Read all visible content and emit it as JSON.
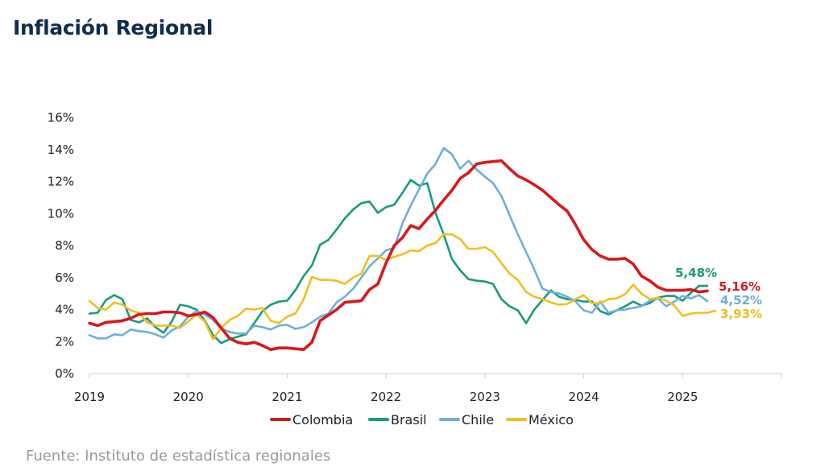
{
  "title": "Inflación Regional",
  "source": "Fuente: Instituto de estadística regionales",
  "chart_data": {
    "type": "line",
    "title": "Inflación Regional",
    "xlabel": "",
    "ylabel": "",
    "xlim": [
      2019.0,
      2026.0
    ],
    "ylim": [
      0,
      16
    ],
    "y_ticks": [
      "0%",
      "2%",
      "4%",
      "6%",
      "8%",
      "10%",
      "12%",
      "14%",
      "16%"
    ],
    "x_ticks": [
      "2019",
      "2020",
      "2021",
      "2022",
      "2023",
      "2024",
      "2025"
    ],
    "grid": false,
    "legend_position": "bottom",
    "series": [
      {
        "name": "Colombia",
        "color": "#d7191c",
        "end_label": "5,16%",
        "x": [
          2019.0,
          2019.083,
          2019.167,
          2019.25,
          2019.333,
          2019.417,
          2019.5,
          2019.583,
          2019.667,
          2019.75,
          2019.833,
          2019.917,
          2020.0,
          2020.083,
          2020.167,
          2020.25,
          2020.333,
          2020.417,
          2020.5,
          2020.583,
          2020.667,
          2020.75,
          2020.833,
          2020.917,
          2021.0,
          2021.083,
          2021.167,
          2021.25,
          2021.333,
          2021.417,
          2021.5,
          2021.583,
          2021.667,
          2021.75,
          2021.833,
          2021.917,
          2022.0,
          2022.083,
          2022.167,
          2022.25,
          2022.333,
          2022.417,
          2022.5,
          2022.583,
          2022.667,
          2022.75,
          2022.833,
          2022.917,
          2023.0,
          2023.083,
          2023.167,
          2023.25,
          2023.333,
          2023.417,
          2023.5,
          2023.583,
          2023.667,
          2023.75,
          2023.833,
          2023.917,
          2024.0,
          2024.083,
          2024.167,
          2024.25,
          2024.333,
          2024.417,
          2024.5,
          2024.583,
          2024.667,
          2024.75,
          2024.833,
          2024.917,
          2025.0,
          2025.083,
          2025.167,
          2025.25
        ],
        "values": [
          3.15,
          3.0,
          3.2,
          3.25,
          3.3,
          3.45,
          3.7,
          3.75,
          3.75,
          3.85,
          3.85,
          3.8,
          3.6,
          3.7,
          3.85,
          3.5,
          2.85,
          2.2,
          1.95,
          1.85,
          1.95,
          1.75,
          1.5,
          1.6,
          1.6,
          1.55,
          1.5,
          1.95,
          3.3,
          3.65,
          4.0,
          4.45,
          4.5,
          4.55,
          5.25,
          5.6,
          6.9,
          8.0,
          8.5,
          9.25,
          9.05,
          9.65,
          10.2,
          10.85,
          11.45,
          12.2,
          12.55,
          13.1,
          13.2,
          13.25,
          13.3,
          12.8,
          12.35,
          12.1,
          11.8,
          11.45,
          11.0,
          10.55,
          10.15,
          9.3,
          8.35,
          7.75,
          7.35,
          7.15,
          7.15,
          7.2,
          6.85,
          6.1,
          5.8,
          5.4,
          5.2,
          5.2,
          5.2,
          5.25,
          5.1,
          5.16
        ]
      },
      {
        "name": "Brasil",
        "color": "#179c7d",
        "end_label": "5,48%",
        "x": [
          2019.0,
          2019.083,
          2019.167,
          2019.25,
          2019.333,
          2019.417,
          2019.5,
          2019.583,
          2019.667,
          2019.75,
          2019.833,
          2019.917,
          2020.0,
          2020.083,
          2020.167,
          2020.25,
          2020.333,
          2020.417,
          2020.5,
          2020.583,
          2020.667,
          2020.75,
          2020.833,
          2020.917,
          2021.0,
          2021.083,
          2021.167,
          2021.25,
          2021.333,
          2021.417,
          2021.5,
          2021.583,
          2021.667,
          2021.75,
          2021.833,
          2021.917,
          2022.0,
          2022.083,
          2022.167,
          2022.25,
          2022.333,
          2022.417,
          2022.5,
          2022.583,
          2022.667,
          2022.75,
          2022.833,
          2022.917,
          2023.0,
          2023.083,
          2023.167,
          2023.25,
          2023.333,
          2023.417,
          2023.5,
          2023.583,
          2023.667,
          2023.75,
          2023.833,
          2023.917,
          2024.0,
          2024.083,
          2024.167,
          2024.25,
          2024.333,
          2024.417,
          2024.5,
          2024.583,
          2024.667,
          2024.75,
          2024.833,
          2024.917,
          2025.0,
          2025.083,
          2025.167,
          2025.25
        ],
        "values": [
          3.75,
          3.8,
          4.6,
          4.9,
          4.65,
          3.35,
          3.2,
          3.45,
          2.9,
          2.55,
          3.25,
          4.3,
          4.2,
          4.0,
          3.3,
          2.4,
          1.9,
          2.15,
          2.3,
          2.45,
          3.15,
          3.9,
          4.3,
          4.5,
          4.55,
          5.2,
          6.1,
          6.75,
          8.05,
          8.35,
          9.0,
          9.7,
          10.25,
          10.65,
          10.75,
          10.05,
          10.4,
          10.55,
          11.3,
          12.1,
          11.75,
          11.9,
          10.05,
          8.7,
          7.15,
          6.45,
          5.9,
          5.8,
          5.75,
          5.6,
          4.65,
          4.2,
          3.95,
          3.15,
          4.0,
          4.6,
          5.2,
          4.8,
          4.65,
          4.6,
          4.5,
          4.5,
          3.9,
          3.7,
          3.95,
          4.2,
          4.5,
          4.25,
          4.4,
          4.75,
          4.85,
          4.85,
          4.55,
          5.05,
          5.48,
          5.48
        ]
      },
      {
        "name": "Chile",
        "color": "#6cb0de",
        "end_label": "4,52%",
        "x": [
          2019.0,
          2019.083,
          2019.167,
          2019.25,
          2019.333,
          2019.417,
          2019.5,
          2019.583,
          2019.667,
          2019.75,
          2019.833,
          2019.917,
          2020.0,
          2020.083,
          2020.167,
          2020.25,
          2020.333,
          2020.417,
          2020.5,
          2020.583,
          2020.667,
          2020.75,
          2020.833,
          2020.917,
          2021.0,
          2021.083,
          2021.167,
          2021.25,
          2021.333,
          2021.417,
          2021.5,
          2021.583,
          2021.667,
          2021.75,
          2021.833,
          2021.917,
          2022.0,
          2022.083,
          2022.167,
          2022.25,
          2022.333,
          2022.417,
          2022.5,
          2022.583,
          2022.667,
          2022.75,
          2022.833,
          2022.917,
          2023.0,
          2023.083,
          2023.167,
          2023.25,
          2023.333,
          2023.417,
          2023.5,
          2023.583,
          2023.667,
          2023.75,
          2023.833,
          2023.917,
          2024.0,
          2024.083,
          2024.167,
          2024.25,
          2024.333,
          2024.417,
          2024.5,
          2024.583,
          2024.667,
          2024.75,
          2024.833,
          2024.917,
          2025.0,
          2025.083,
          2025.167,
          2025.25
        ],
        "values": [
          2.4,
          2.2,
          2.2,
          2.45,
          2.4,
          2.75,
          2.65,
          2.6,
          2.45,
          2.25,
          2.7,
          2.95,
          3.55,
          3.9,
          3.7,
          3.35,
          2.8,
          2.6,
          2.5,
          2.5,
          3.0,
          2.9,
          2.75,
          3.0,
          3.05,
          2.8,
          2.9,
          3.2,
          3.55,
          3.75,
          4.45,
          4.8,
          5.3,
          6.0,
          6.7,
          7.2,
          7.7,
          7.85,
          9.4,
          10.5,
          11.5,
          12.5,
          13.1,
          14.1,
          13.7,
          12.8,
          13.3,
          12.75,
          12.3,
          11.9,
          11.1,
          9.9,
          8.7,
          7.6,
          6.5,
          5.3,
          5.1,
          5.0,
          4.8,
          4.5,
          3.95,
          3.8,
          4.5,
          3.8,
          3.95,
          4.0,
          4.1,
          4.2,
          4.55,
          4.7,
          4.2,
          4.5,
          4.85,
          4.7,
          4.9,
          4.52
        ]
      },
      {
        "name": "México",
        "color": "#f2bf1e",
        "end_label": "3,93%",
        "x": [
          2019.0,
          2019.083,
          2019.167,
          2019.25,
          2019.333,
          2019.417,
          2019.5,
          2019.583,
          2019.667,
          2019.75,
          2019.833,
          2019.917,
          2020.0,
          2020.083,
          2020.167,
          2020.25,
          2020.333,
          2020.417,
          2020.5,
          2020.583,
          2020.667,
          2020.75,
          2020.833,
          2020.917,
          2021.0,
          2021.083,
          2021.167,
          2021.25,
          2021.333,
          2021.417,
          2021.5,
          2021.583,
          2021.667,
          2021.75,
          2021.833,
          2021.917,
          2022.0,
          2022.083,
          2022.167,
          2022.25,
          2022.333,
          2022.417,
          2022.5,
          2022.583,
          2022.667,
          2022.75,
          2022.833,
          2022.917,
          2023.0,
          2023.083,
          2023.167,
          2023.25,
          2023.333,
          2023.417,
          2023.5,
          2023.583,
          2023.667,
          2023.75,
          2023.833,
          2023.917,
          2024.0,
          2024.083,
          2024.167,
          2024.25,
          2024.333,
          2024.417,
          2024.5,
          2024.583,
          2024.667,
          2024.75,
          2024.833,
          2024.917,
          2025.0,
          2025.083,
          2025.167,
          2025.25,
          2025.333
        ],
        "values": [
          4.55,
          4.1,
          4.0,
          4.45,
          4.3,
          3.95,
          3.8,
          3.2,
          3.0,
          3.0,
          3.0,
          2.85,
          3.25,
          3.7,
          3.25,
          2.15,
          2.85,
          3.35,
          3.6,
          4.05,
          4.0,
          4.1,
          3.3,
          3.15,
          3.55,
          3.75,
          4.65,
          6.05,
          5.85,
          5.85,
          5.8,
          5.6,
          6.0,
          6.25,
          7.35,
          7.35,
          7.1,
          7.3,
          7.45,
          7.7,
          7.65,
          8.0,
          8.15,
          8.7,
          8.7,
          8.4,
          7.8,
          7.8,
          7.9,
          7.6,
          6.9,
          6.25,
          5.85,
          5.1,
          4.8,
          4.65,
          4.45,
          4.3,
          4.35,
          4.65,
          4.9,
          4.4,
          4.4,
          4.65,
          4.7,
          4.95,
          5.55,
          5.0,
          4.65,
          4.75,
          4.55,
          4.25,
          3.6,
          3.75,
          3.8,
          3.8,
          3.93
        ]
      }
    ],
    "legend_order": [
      "Colombia",
      "Brasil",
      "Chile",
      "México"
    ],
    "end_label_order": [
      "Brasil",
      "Colombia",
      "Chile",
      "México"
    ]
  }
}
